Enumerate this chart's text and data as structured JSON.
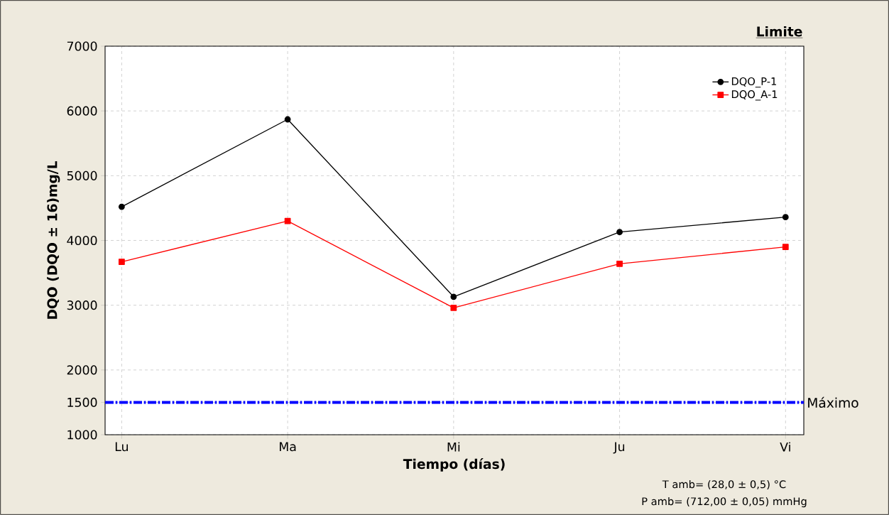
{
  "chart_data": {
    "type": "line",
    "xlabel": "Tiempo (días)",
    "ylabel": "DQO (DQO ± 16)mg/L",
    "categories": [
      "Lu",
      "Ma",
      "Mi",
      "Ju",
      "Vi"
    ],
    "series": [
      {
        "name": "DQO_P-1",
        "color": "#000000",
        "marker": "circle",
        "values": [
          4520,
          5870,
          3130,
          4130,
          4360
        ]
      },
      {
        "name": "DQO_A-1",
        "color": "#ff0000",
        "marker": "square",
        "values": [
          3670,
          4300,
          2960,
          3640,
          3900
        ]
      }
    ],
    "ylim": [
      1000,
      7000
    ],
    "yticks": [
      1000,
      1500,
      2000,
      3000,
      4000,
      5000,
      6000,
      7000
    ],
    "ref_lines": [
      {
        "axis": "y",
        "value": 1500,
        "label": "Máximo",
        "color": "#0000ff",
        "line_style": "dashdot"
      }
    ],
    "annotations": [
      "Limite",
      "T amb= (28,0 ± 0,5) °C",
      "P amb= (712,00 ± 0,05) mmHg"
    ],
    "grid": true,
    "legend": "top right",
    "line_style": "solid"
  }
}
